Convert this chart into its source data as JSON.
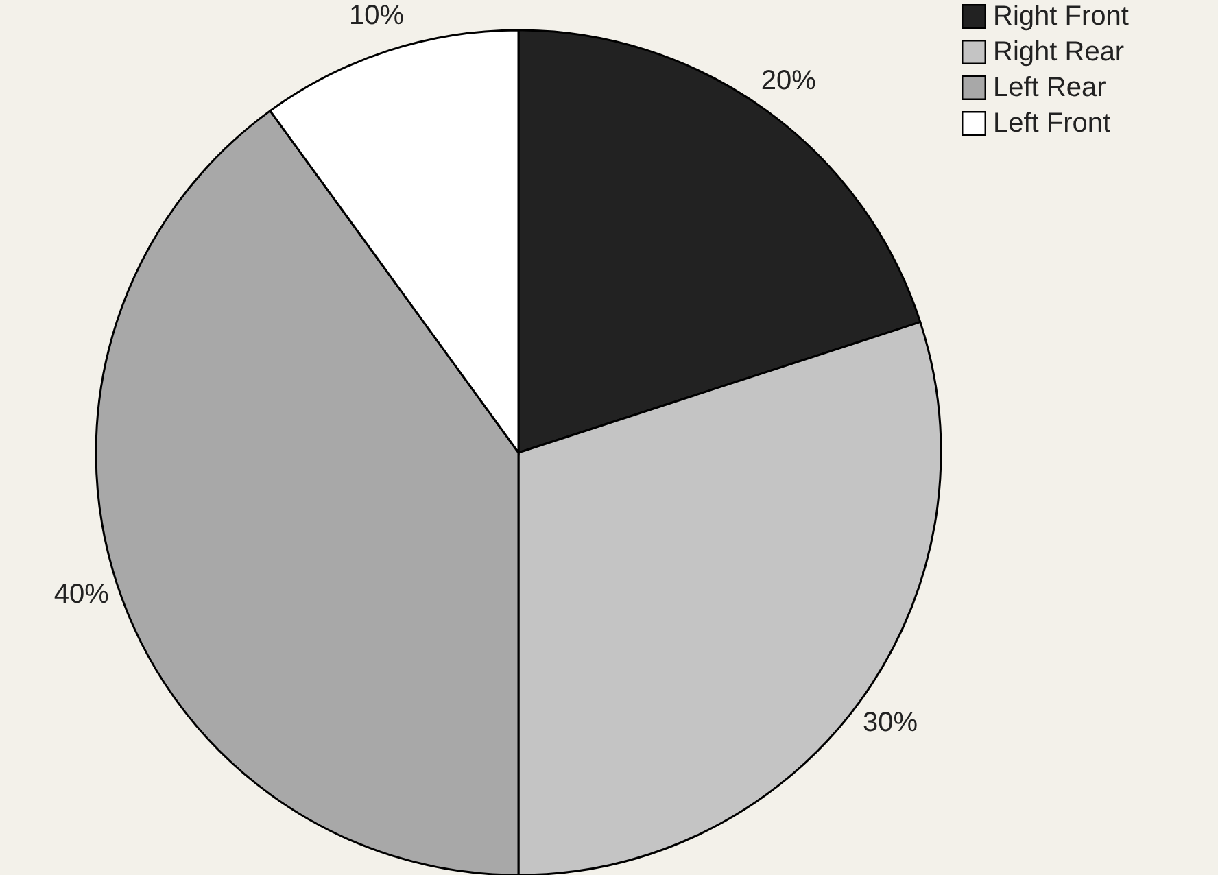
{
  "chart_data": {
    "type": "pie",
    "categories": [
      "Right Front",
      "Right Rear",
      "Left Rear",
      "Left Front"
    ],
    "values": [
      20,
      30,
      40,
      10
    ],
    "colors": [
      "#222222",
      "#c4c4c4",
      "#a8a8a8",
      "#ffffff"
    ],
    "value_labels": [
      "20%",
      "30%",
      "40%",
      "10%"
    ],
    "legend": "top right"
  }
}
